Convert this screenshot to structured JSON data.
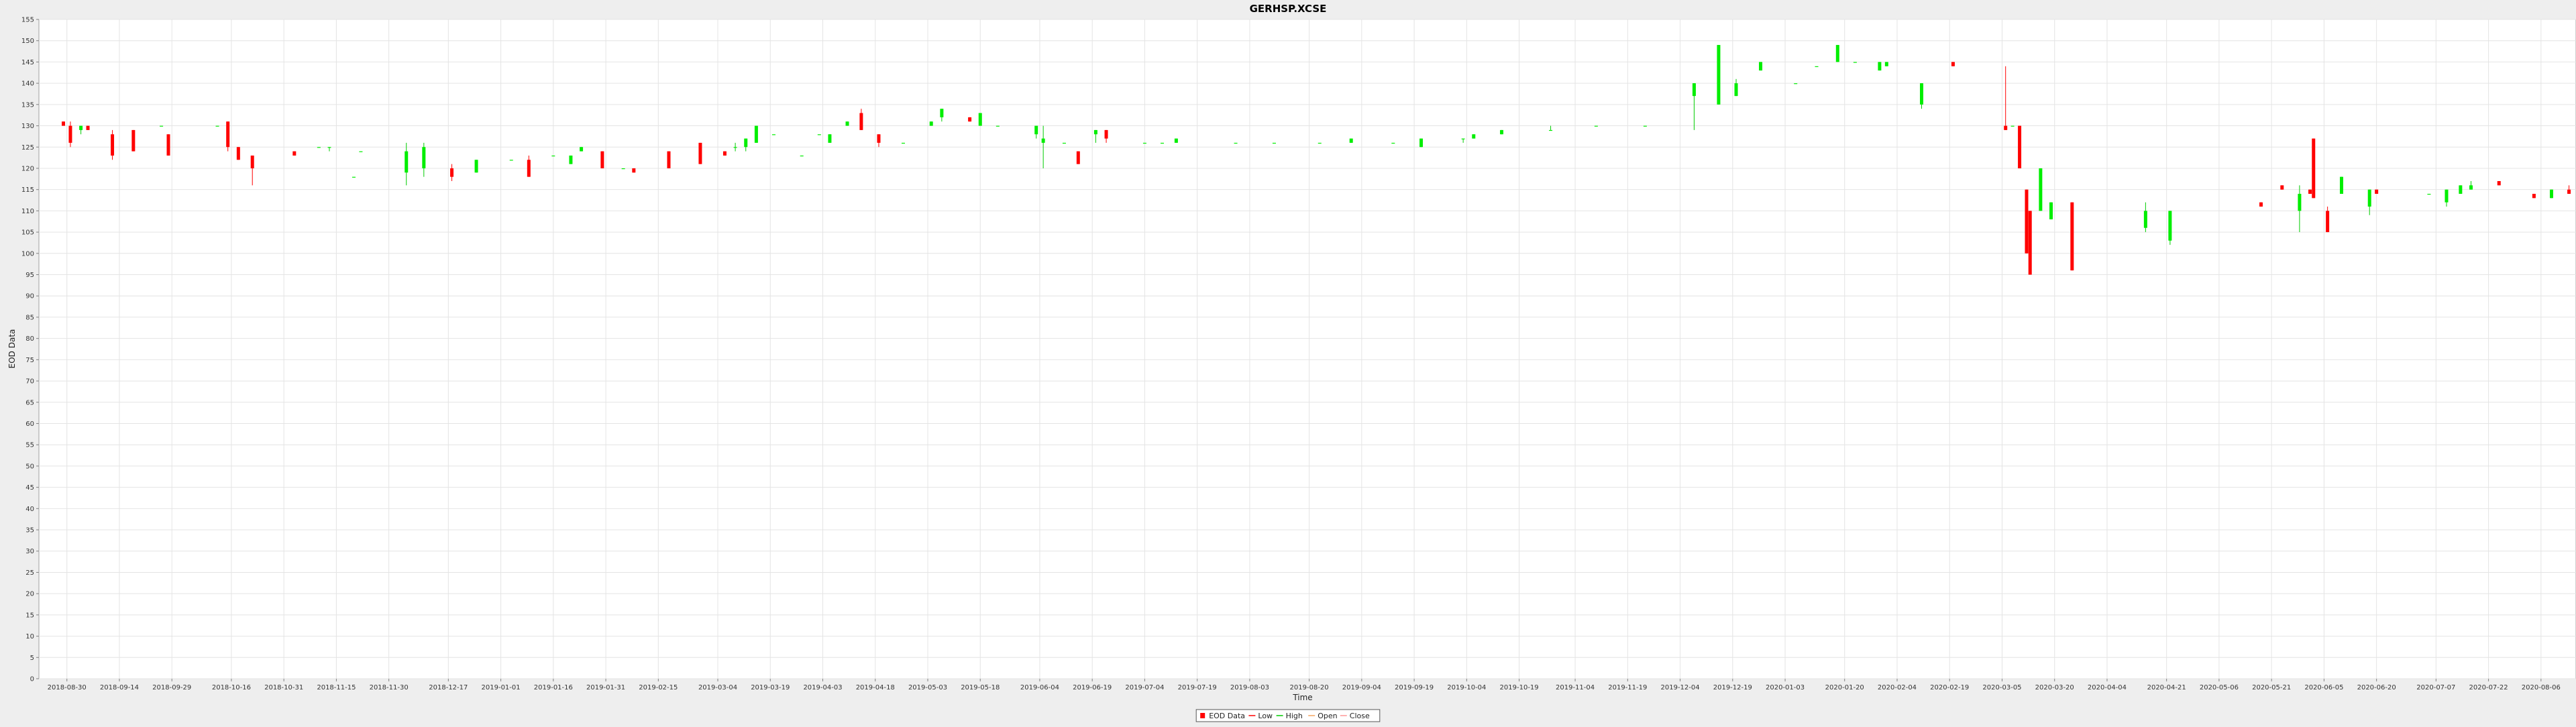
{
  "chart_data": {
    "type": "candlestick",
    "title": "GERHSP.XCSE",
    "xlabel": "Time",
    "ylabel": "EOD Data",
    "ylim": [
      0,
      155
    ],
    "yticks": [
      0,
      5,
      10,
      15,
      20,
      25,
      30,
      35,
      40,
      45,
      50,
      55,
      60,
      65,
      70,
      75,
      80,
      85,
      90,
      95,
      100,
      105,
      110,
      115,
      120,
      125,
      130,
      135,
      140,
      145,
      150,
      155
    ],
    "xlim": [
      "2018-08-22",
      "2020-08-16"
    ],
    "xticks": [
      "2018-08-30",
      "2018-09-14",
      "2018-09-29",
      "2018-10-16",
      "2018-10-31",
      "2018-11-15",
      "2018-11-30",
      "2018-12-17",
      "2019-01-01",
      "2019-01-16",
      "2019-01-31",
      "2019-02-15",
      "2019-03-04",
      "2019-03-19",
      "2019-04-03",
      "2019-04-18",
      "2019-05-03",
      "2019-05-18",
      "2019-06-04",
      "2019-06-19",
      "2019-07-04",
      "2019-07-19",
      "2019-08-03",
      "2019-08-20",
      "2019-09-04",
      "2019-09-19",
      "2019-10-04",
      "2019-10-19",
      "2019-11-04",
      "2019-11-19",
      "2019-12-04",
      "2019-12-19",
      "2020-01-03",
      "2020-01-20",
      "2020-02-04",
      "2020-02-19",
      "2020-03-05",
      "2020-03-20",
      "2020-04-04",
      "2020-04-21",
      "2020-05-06",
      "2020-05-21",
      "2020-06-05",
      "2020-06-20",
      "2020-07-07",
      "2020-07-22",
      "2020-08-06"
    ],
    "grid": true,
    "legend": {
      "position": "bottom",
      "entries": [
        "EOD Data",
        "Low",
        "High",
        "Open",
        "Close"
      ]
    },
    "colors": {
      "up": "#00ee00",
      "down": "#ff0000",
      "wick_up": "#00cc00",
      "wick_down": "#ff0000",
      "plot_bg": "#ffffff",
      "grid": "#e4e4e4",
      "outer_bg": "#eeeeee"
    },
    "series": [
      {
        "name": "EOD Data",
        "points": [
          [
            "2018-08-29",
            131,
            131,
            130,
            130
          ],
          [
            "2018-08-31",
            130,
            131,
            125,
            126
          ],
          [
            "2018-09-03",
            129,
            130,
            128,
            130
          ],
          [
            "2018-09-05",
            130,
            130,
            129,
            129
          ],
          [
            "2018-09-12",
            128,
            129,
            122,
            123
          ],
          [
            "2018-09-18",
            129,
            129,
            124,
            124
          ],
          [
            "2018-09-26",
            130,
            130,
            130,
            130
          ],
          [
            "2018-09-28",
            128,
            128,
            123,
            123
          ],
          [
            "2018-10-12",
            130,
            130,
            130,
            130
          ],
          [
            "2018-10-15",
            131,
            131,
            124,
            125
          ],
          [
            "2018-10-18",
            125,
            125,
            122,
            122
          ],
          [
            "2018-10-22",
            123,
            123,
            116,
            120
          ],
          [
            "2018-11-03",
            124,
            124,
            123,
            123
          ],
          [
            "2018-11-10",
            125,
            125,
            125,
            125
          ],
          [
            "2018-11-13",
            125,
            125,
            124,
            125
          ],
          [
            "2018-11-20",
            118,
            118,
            118,
            118
          ],
          [
            "2018-11-22",
            124,
            124,
            124,
            124
          ],
          [
            "2018-12-05",
            119,
            126,
            116,
            124
          ],
          [
            "2018-12-10",
            120,
            126,
            118,
            125
          ],
          [
            "2018-12-18",
            120,
            121,
            117,
            118
          ],
          [
            "2018-12-25",
            119,
            122,
            119,
            122
          ],
          [
            "2019-01-04",
            122,
            122,
            122,
            122
          ],
          [
            "2019-01-09",
            122,
            123,
            118,
            118
          ],
          [
            "2019-01-16",
            123,
            123,
            123,
            123
          ],
          [
            "2019-01-21",
            121,
            123,
            121,
            123
          ],
          [
            "2019-01-24",
            124,
            125,
            124,
            125
          ],
          [
            "2019-01-30",
            124,
            124,
            120,
            120
          ],
          [
            "2019-02-05",
            120,
            120,
            120,
            120
          ],
          [
            "2019-02-08",
            120,
            120,
            119,
            119
          ],
          [
            "2019-02-18",
            124,
            124,
            120,
            120
          ],
          [
            "2019-02-27",
            126,
            126,
            121,
            121
          ],
          [
            "2019-03-06",
            124,
            124,
            123,
            123
          ],
          [
            "2019-03-09",
            125,
            126,
            124,
            125
          ],
          [
            "2019-03-12",
            125,
            127,
            124,
            127
          ],
          [
            "2019-03-15",
            126,
            130,
            126,
            130
          ],
          [
            "2019-03-20",
            128,
            128,
            128,
            128
          ],
          [
            "2019-03-28",
            123,
            123,
            123,
            123
          ],
          [
            "2019-04-02",
            128,
            128,
            128,
            128
          ],
          [
            "2019-04-05",
            126,
            128,
            126,
            128
          ],
          [
            "2019-04-10",
            130,
            131,
            130,
            131
          ],
          [
            "2019-04-14",
            133,
            134,
            129,
            129
          ],
          [
            "2019-04-19",
            128,
            128,
            125,
            126
          ],
          [
            "2019-04-26",
            126,
            126,
            126,
            126
          ],
          [
            "2019-05-04",
            130,
            131,
            130,
            131
          ],
          [
            "2019-05-07",
            132,
            134,
            131,
            134
          ],
          [
            "2019-05-15",
            132,
            132,
            131,
            131
          ],
          [
            "2019-05-18",
            130,
            133,
            130,
            133
          ],
          [
            "2019-05-23",
            130,
            130,
            130,
            130
          ],
          [
            "2019-06-03",
            128,
            130,
            127,
            130
          ],
          [
            "2019-06-05",
            126,
            130,
            120,
            127
          ],
          [
            "2019-06-11",
            126,
            126,
            126,
            126
          ],
          [
            "2019-06-15",
            124,
            124,
            121,
            121
          ],
          [
            "2019-06-20",
            128,
            129,
            126,
            129
          ],
          [
            "2019-06-23",
            129,
            129,
            126,
            127
          ],
          [
            "2019-07-04",
            126,
            126,
            126,
            126
          ],
          [
            "2019-07-09",
            126,
            126,
            126,
            126
          ],
          [
            "2019-07-13",
            126,
            127,
            126,
            127
          ],
          [
            "2019-07-30",
            126,
            126,
            126,
            126
          ],
          [
            "2019-08-10",
            126,
            126,
            126,
            126
          ],
          [
            "2019-08-23",
            126,
            126,
            126,
            126
          ],
          [
            "2019-09-01",
            126,
            127,
            126,
            127
          ],
          [
            "2019-09-13",
            126,
            126,
            126,
            126
          ],
          [
            "2019-09-21",
            125,
            127,
            125,
            127
          ],
          [
            "2019-10-03",
            127,
            127,
            126,
            127
          ],
          [
            "2019-10-06",
            127,
            128,
            127,
            128
          ],
          [
            "2019-10-14",
            128,
            129,
            128,
            129
          ],
          [
            "2019-10-28",
            129,
            130,
            129,
            129
          ],
          [
            "2019-11-10",
            130,
            130,
            130,
            130
          ],
          [
            "2019-11-24",
            130,
            130,
            130,
            130
          ],
          [
            "2019-12-08",
            137,
            140,
            129,
            140
          ],
          [
            "2019-12-15",
            135,
            149,
            135,
            149
          ],
          [
            "2019-12-20",
            137,
            141,
            137,
            140
          ],
          [
            "2019-12-27",
            143,
            145,
            143,
            145
          ],
          [
            "2020-01-06",
            140,
            140,
            140,
            140
          ],
          [
            "2020-01-12",
            144,
            144,
            144,
            144
          ],
          [
            "2020-01-18",
            145,
            149,
            145,
            149
          ],
          [
            "2020-01-23",
            145,
            145,
            145,
            145
          ],
          [
            "2020-01-30",
            143,
            145,
            143,
            145
          ],
          [
            "2020-02-01",
            144,
            145,
            144,
            145
          ],
          [
            "2020-02-11",
            135,
            140,
            134,
            140
          ],
          [
            "2020-02-20",
            145,
            145,
            144,
            144
          ],
          [
            "2020-03-06",
            130,
            144,
            129,
            129
          ],
          [
            "2020-03-08",
            130,
            130,
            130,
            130
          ],
          [
            "2020-03-10",
            130,
            130,
            120,
            120
          ],
          [
            "2020-03-12",
            115,
            115,
            100,
            100
          ],
          [
            "2020-03-13",
            110,
            110,
            95,
            95
          ],
          [
            "2020-03-16",
            110,
            120,
            110,
            120
          ],
          [
            "2020-03-19",
            108,
            112,
            108,
            112
          ],
          [
            "2020-03-25",
            112,
            112,
            96,
            96
          ],
          [
            "2020-04-15",
            106,
            112,
            105,
            110
          ],
          [
            "2020-04-22",
            103,
            110,
            102,
            110
          ],
          [
            "2020-05-18",
            112,
            112,
            111,
            111
          ],
          [
            "2020-05-24",
            116,
            116,
            115,
            115
          ],
          [
            "2020-05-29",
            110,
            116,
            105,
            114
          ],
          [
            "2020-06-01",
            115,
            115,
            114,
            114
          ],
          [
            "2020-06-02",
            127,
            127,
            113,
            113
          ],
          [
            "2020-06-06",
            110,
            111,
            105,
            105
          ],
          [
            "2020-06-10",
            114,
            118,
            114,
            118
          ],
          [
            "2020-06-18",
            111,
            115,
            109,
            115
          ],
          [
            "2020-06-20",
            115,
            115,
            114,
            114
          ],
          [
            "2020-07-05",
            114,
            114,
            114,
            114
          ],
          [
            "2020-07-10",
            112,
            115,
            111,
            115
          ],
          [
            "2020-07-14",
            114,
            116,
            114,
            116
          ],
          [
            "2020-07-17",
            115,
            117,
            115,
            116
          ],
          [
            "2020-07-25",
            117,
            117,
            116,
            116
          ],
          [
            "2020-08-04",
            114,
            114,
            113,
            113
          ],
          [
            "2020-08-09",
            113,
            115,
            113,
            115
          ],
          [
            "2020-08-14",
            115,
            116,
            115,
            114
          ]
        ]
      }
    ]
  }
}
